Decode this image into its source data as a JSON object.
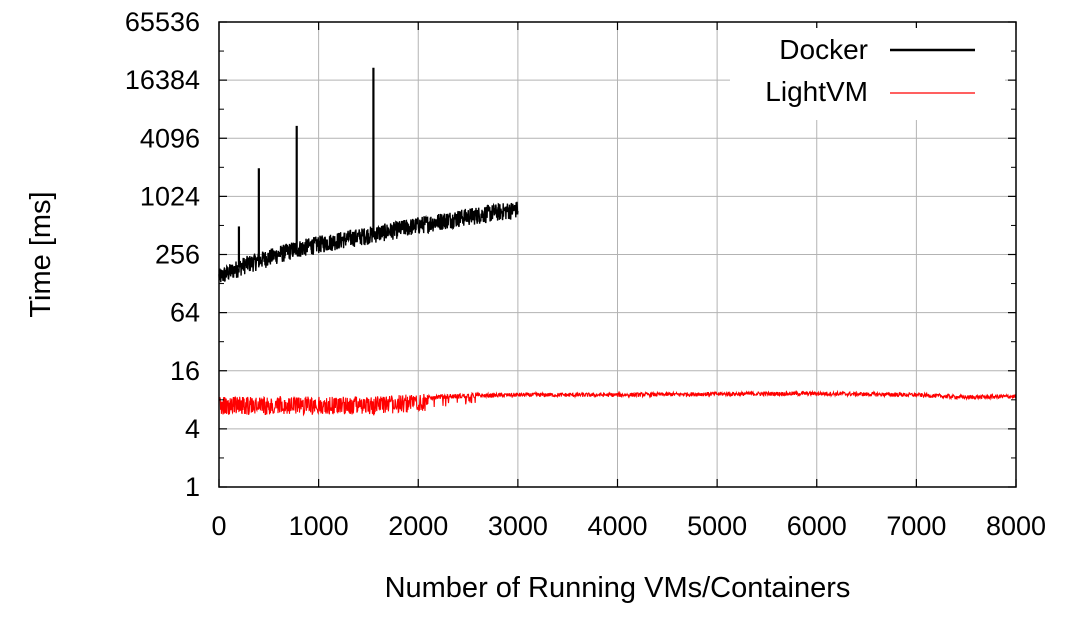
{
  "chart_data": {
    "type": "line",
    "xlabel": "Number of Running VMs/Containers",
    "ylabel": "Time [ms]",
    "xlim": [
      0,
      8000
    ],
    "ylim": [
      1,
      65536
    ],
    "yscale": "log2",
    "xticks": [
      "0",
      "1000",
      "2000",
      "3000",
      "4000",
      "5000",
      "6000",
      "7000",
      "8000"
    ],
    "yticks": [
      "1",
      "4",
      "16",
      "64",
      "256",
      "1024",
      "4096",
      "16384",
      "65536"
    ],
    "grid": true,
    "legend_position": "top-right",
    "series": [
      {
        "name": "Docker",
        "color": "#000000",
        "x": [
          0,
          250,
          500,
          750,
          1000,
          1250,
          1500,
          1750,
          2000,
          2250,
          2500,
          2750,
          3000
        ],
        "y": [
          150,
          200,
          240,
          290,
          330,
          370,
          410,
          460,
          520,
          580,
          640,
          700,
          760
        ],
        "spikes": [
          {
            "x": 200,
            "y": 500
          },
          {
            "x": 400,
            "y": 2000
          },
          {
            "x": 780,
            "y": 5500
          },
          {
            "x": 1550,
            "y": 22000
          }
        ]
      },
      {
        "name": "LightVM",
        "color": "#ff0000",
        "x": [
          0,
          500,
          1000,
          1500,
          2000,
          2500,
          3000,
          4000,
          5000,
          6000,
          7000,
          7500,
          8000
        ],
        "y": [
          8,
          8,
          8,
          8,
          8.5,
          8.8,
          9,
          9,
          9.2,
          9.3,
          9,
          8.5,
          8.7
        ]
      }
    ]
  }
}
